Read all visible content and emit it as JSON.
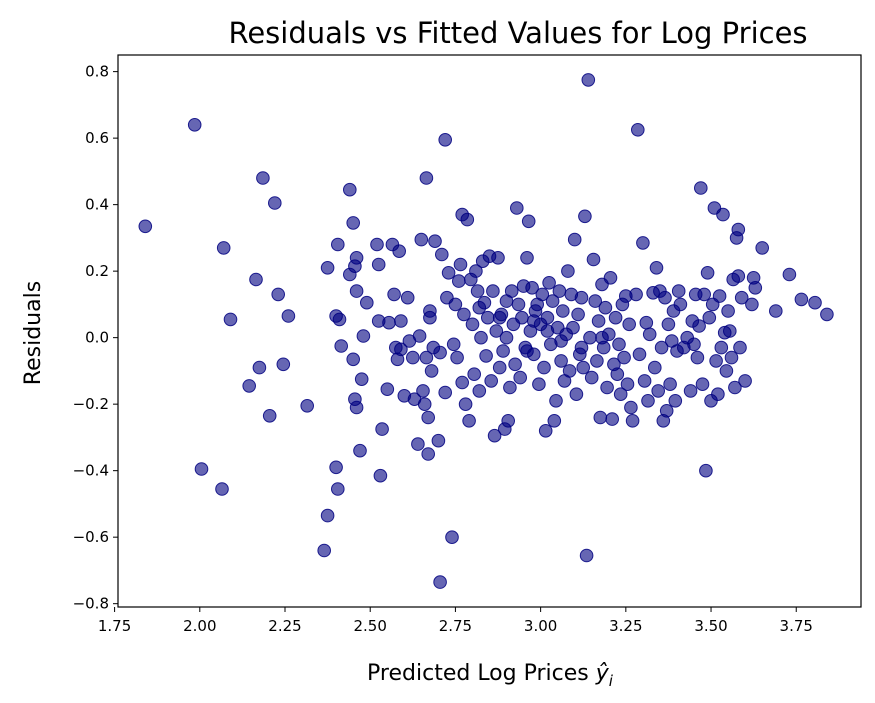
{
  "chart_data": {
    "type": "scatter",
    "title": "Residuals vs Fitted Values for Log Prices",
    "xlabel_prefix": "Predicted Log Prices ",
    "xlabel_symbol": "ŷ",
    "xlabel_subscript": "i",
    "ylabel": "Residuals",
    "xlim": [
      1.76,
      3.94
    ],
    "ylim": [
      -0.81,
      0.85
    ],
    "x_ticks": [
      1.75,
      2.0,
      2.25,
      2.5,
      2.75,
      3.0,
      3.25,
      3.5,
      3.75
    ],
    "x_tick_labels": [
      "1.75",
      "2.00",
      "2.25",
      "2.50",
      "2.75",
      "3.00",
      "3.25",
      "3.50",
      "3.75"
    ],
    "y_ticks": [
      -0.8,
      -0.6,
      -0.4,
      -0.2,
      0.0,
      0.2,
      0.4,
      0.6,
      0.8
    ],
    "y_tick_labels": [
      "−0.8",
      "−0.6",
      "−0.4",
      "−0.2",
      "0.0",
      "0.2",
      "0.4",
      "0.6",
      "0.8"
    ],
    "grid": false,
    "marker_color": "#000080",
    "marker_alpha": 0.6,
    "points": [
      [
        1.84,
        0.335
      ],
      [
        1.985,
        0.64
      ],
      [
        2.005,
        -0.395
      ],
      [
        2.07,
        0.27
      ],
      [
        2.065,
        -0.455
      ],
      [
        2.09,
        0.055
      ],
      [
        2.145,
        -0.145
      ],
      [
        2.165,
        0.175
      ],
      [
        2.175,
        -0.09
      ],
      [
        2.185,
        0.48
      ],
      [
        2.205,
        -0.235
      ],
      [
        2.22,
        0.405
      ],
      [
        2.23,
        0.13
      ],
      [
        2.245,
        -0.08
      ],
      [
        2.26,
        0.065
      ],
      [
        2.315,
        -0.205
      ],
      [
        2.365,
        -0.64
      ],
      [
        2.375,
        -0.535
      ],
      [
        2.375,
        0.21
      ],
      [
        2.4,
        0.065
      ],
      [
        2.405,
        0.28
      ],
      [
        2.4,
        -0.39
      ],
      [
        2.405,
        -0.455
      ],
      [
        2.41,
        0.055
      ],
      [
        2.415,
        -0.025
      ],
      [
        2.44,
        0.445
      ],
      [
        2.44,
        0.19
      ],
      [
        2.45,
        0.345
      ],
      [
        2.45,
        -0.065
      ],
      [
        2.455,
        0.215
      ],
      [
        2.46,
        0.24
      ],
      [
        2.46,
        0.14
      ],
      [
        2.455,
        -0.185
      ],
      [
        2.46,
        -0.21
      ],
      [
        2.47,
        -0.34
      ],
      [
        2.475,
        -0.125
      ],
      [
        2.48,
        0.005
      ],
      [
        2.49,
        0.105
      ],
      [
        2.52,
        0.28
      ],
      [
        2.525,
        0.22
      ],
      [
        2.525,
        0.05
      ],
      [
        2.535,
        -0.275
      ],
      [
        2.53,
        -0.415
      ],
      [
        2.55,
        -0.155
      ],
      [
        2.555,
        0.045
      ],
      [
        2.565,
        0.28
      ],
      [
        2.57,
        0.13
      ],
      [
        2.575,
        -0.03
      ],
      [
        2.58,
        -0.065
      ],
      [
        2.585,
        0.26
      ],
      [
        2.59,
        0.05
      ],
      [
        2.59,
        -0.035
      ],
      [
        2.6,
        -0.175
      ],
      [
        2.61,
        0.12
      ],
      [
        2.615,
        -0.01
      ],
      [
        2.625,
        -0.06
      ],
      [
        2.63,
        -0.185
      ],
      [
        2.64,
        -0.32
      ],
      [
        2.645,
        0.005
      ],
      [
        2.65,
        0.295
      ],
      [
        2.655,
        -0.16
      ],
      [
        2.66,
        -0.2
      ],
      [
        2.665,
        0.48
      ],
      [
        2.665,
        -0.06
      ],
      [
        2.67,
        -0.35
      ],
      [
        2.67,
        -0.24
      ],
      [
        2.675,
        0.08
      ],
      [
        2.675,
        0.06
      ],
      [
        2.68,
        -0.1
      ],
      [
        2.685,
        -0.03
      ],
      [
        2.69,
        0.29
      ],
      [
        2.7,
        -0.31
      ],
      [
        2.705,
        -0.045
      ],
      [
        2.705,
        -0.735
      ],
      [
        2.71,
        0.25
      ],
      [
        2.72,
        0.595
      ],
      [
        2.72,
        -0.165
      ],
      [
        2.725,
        0.12
      ],
      [
        2.73,
        0.195
      ],
      [
        2.74,
        -0.6
      ],
      [
        2.745,
        -0.02
      ],
      [
        2.75,
        0.1
      ],
      [
        2.755,
        -0.06
      ],
      [
        2.76,
        0.17
      ],
      [
        2.765,
        0.22
      ],
      [
        2.77,
        -0.135
      ],
      [
        2.77,
        0.37
      ],
      [
        2.775,
        0.07
      ],
      [
        2.78,
        -0.2
      ],
      [
        2.785,
        0.355
      ],
      [
        2.79,
        -0.25
      ],
      [
        2.795,
        0.175
      ],
      [
        2.8,
        0.04
      ],
      [
        2.805,
        -0.11
      ],
      [
        2.81,
        0.2
      ],
      [
        2.815,
        0.14
      ],
      [
        2.82,
        0.09
      ],
      [
        2.82,
        -0.16
      ],
      [
        2.825,
        0.0
      ],
      [
        2.83,
        0.23
      ],
      [
        2.835,
        0.105
      ],
      [
        2.84,
        -0.055
      ],
      [
        2.845,
        0.06
      ],
      [
        2.85,
        0.245
      ],
      [
        2.855,
        -0.13
      ],
      [
        2.86,
        0.14
      ],
      [
        2.865,
        -0.295
      ],
      [
        2.87,
        0.02
      ],
      [
        2.875,
        0.24
      ],
      [
        2.88,
        -0.09
      ],
      [
        2.885,
        0.07
      ],
      [
        2.89,
        -0.04
      ],
      [
        2.895,
        -0.275
      ],
      [
        2.9,
        0.11
      ],
      [
        2.905,
        -0.25
      ],
      [
        2.91,
        -0.15
      ],
      [
        2.915,
        0.14
      ],
      [
        2.92,
        0.04
      ],
      [
        2.925,
        -0.08
      ],
      [
        2.93,
        0.39
      ],
      [
        2.935,
        0.1
      ],
      [
        2.94,
        -0.12
      ],
      [
        2.945,
        0.06
      ],
      [
        2.95,
        0.155
      ],
      [
        2.955,
        -0.03
      ],
      [
        2.96,
        0.24
      ],
      [
        2.965,
        0.35
      ],
      [
        2.97,
        0.02
      ],
      [
        2.975,
        0.15
      ],
      [
        2.98,
        -0.05
      ],
      [
        2.985,
        0.08
      ],
      [
        2.99,
        0.1
      ],
      [
        2.995,
        -0.14
      ],
      [
        3.0,
        0.04
      ],
      [
        3.005,
        0.13
      ],
      [
        3.01,
        -0.09
      ],
      [
        3.015,
        -0.28
      ],
      [
        3.02,
        0.06
      ],
      [
        3.025,
        0.165
      ],
      [
        3.03,
        -0.02
      ],
      [
        3.035,
        0.11
      ],
      [
        3.04,
        -0.25
      ],
      [
        3.045,
        -0.19
      ],
      [
        3.05,
        0.03
      ],
      [
        3.055,
        0.14
      ],
      [
        3.06,
        -0.07
      ],
      [
        3.065,
        0.08
      ],
      [
        3.07,
        -0.13
      ],
      [
        3.075,
        0.01
      ],
      [
        3.08,
        0.2
      ],
      [
        3.085,
        -0.1
      ],
      [
        3.09,
        0.13
      ],
      [
        3.095,
        0.03
      ],
      [
        3.1,
        0.295
      ],
      [
        3.105,
        -0.17
      ],
      [
        3.11,
        0.07
      ],
      [
        3.115,
        -0.05
      ],
      [
        3.12,
        0.12
      ],
      [
        3.125,
        -0.09
      ],
      [
        3.13,
        0.365
      ],
      [
        3.135,
        -0.655
      ],
      [
        3.14,
        0.775
      ],
      [
        3.145,
        0.0
      ],
      [
        3.15,
        -0.12
      ],
      [
        3.155,
        0.235
      ],
      [
        3.16,
        0.11
      ],
      [
        3.165,
        -0.07
      ],
      [
        3.17,
        0.05
      ],
      [
        3.175,
        -0.24
      ],
      [
        3.18,
        0.16
      ],
      [
        3.185,
        -0.03
      ],
      [
        3.19,
        0.09
      ],
      [
        3.195,
        -0.15
      ],
      [
        3.2,
        0.01
      ],
      [
        3.205,
        0.18
      ],
      [
        3.21,
        -0.245
      ],
      [
        3.215,
        -0.08
      ],
      [
        3.22,
        0.06
      ],
      [
        3.225,
        -0.11
      ],
      [
        3.23,
        -0.02
      ],
      [
        3.235,
        -0.17
      ],
      [
        3.24,
        0.1
      ],
      [
        3.245,
        -0.06
      ],
      [
        3.25,
        0.125
      ],
      [
        3.255,
        -0.14
      ],
      [
        3.26,
        0.04
      ],
      [
        3.265,
        -0.21
      ],
      [
        3.27,
        -0.25
      ],
      [
        3.28,
        0.13
      ],
      [
        3.285,
        0.625
      ],
      [
        3.29,
        -0.05
      ],
      [
        3.3,
        0.285
      ],
      [
        3.305,
        -0.13
      ],
      [
        3.31,
        0.045
      ],
      [
        3.315,
        -0.19
      ],
      [
        3.32,
        0.01
      ],
      [
        3.33,
        0.135
      ],
      [
        3.335,
        -0.09
      ],
      [
        3.34,
        0.21
      ],
      [
        3.345,
        -0.16
      ],
      [
        3.35,
        0.14
      ],
      [
        3.355,
        -0.03
      ],
      [
        3.36,
        -0.25
      ],
      [
        3.365,
        0.12
      ],
      [
        3.37,
        -0.22
      ],
      [
        3.375,
        0.04
      ],
      [
        3.38,
        -0.14
      ],
      [
        3.385,
        -0.01
      ],
      [
        3.39,
        0.08
      ],
      [
        3.395,
        -0.19
      ],
      [
        3.4,
        -0.04
      ],
      [
        3.405,
        0.14
      ],
      [
        3.41,
        0.1
      ],
      [
        3.42,
        -0.03
      ],
      [
        3.43,
        0.0
      ],
      [
        3.44,
        -0.16
      ],
      [
        3.445,
        0.05
      ],
      [
        3.45,
        -0.02
      ],
      [
        3.455,
        0.13
      ],
      [
        3.46,
        -0.06
      ],
      [
        3.465,
        0.035
      ],
      [
        3.47,
        0.45
      ],
      [
        3.475,
        -0.14
      ],
      [
        3.48,
        0.13
      ],
      [
        3.485,
        -0.4
      ],
      [
        3.49,
        0.195
      ],
      [
        3.495,
        0.06
      ],
      [
        3.5,
        -0.19
      ],
      [
        3.505,
        0.1
      ],
      [
        3.51,
        0.39
      ],
      [
        3.515,
        -0.07
      ],
      [
        3.52,
        -0.17
      ],
      [
        3.525,
        0.125
      ],
      [
        3.53,
        -0.03
      ],
      [
        3.535,
        0.37
      ],
      [
        3.54,
        0.015
      ],
      [
        3.545,
        -0.1
      ],
      [
        3.55,
        0.08
      ],
      [
        3.555,
        0.02
      ],
      [
        3.56,
        -0.06
      ],
      [
        3.565,
        0.175
      ],
      [
        3.57,
        -0.15
      ],
      [
        3.575,
        0.3
      ],
      [
        3.58,
        0.325
      ],
      [
        3.585,
        -0.03
      ],
      [
        3.59,
        0.12
      ],
      [
        3.6,
        -0.13
      ],
      [
        3.62,
        0.1
      ],
      [
        3.625,
        0.18
      ],
      [
        3.63,
        0.15
      ],
      [
        3.65,
        0.27
      ],
      [
        3.69,
        0.08
      ],
      [
        3.73,
        0.19
      ],
      [
        3.765,
        0.115
      ],
      [
        3.805,
        0.105
      ],
      [
        3.84,
        0.07
      ],
      [
        3.58,
        0.185
      ],
      [
        2.96,
        -0.04
      ],
      [
        3.02,
        0.02
      ],
      [
        2.98,
        0.05
      ],
      [
        3.06,
        -0.01
      ],
      [
        3.12,
        -0.03
      ],
      [
        3.18,
        0.0
      ],
      [
        2.9,
        0.0
      ],
      [
        2.88,
        0.06
      ]
    ]
  }
}
